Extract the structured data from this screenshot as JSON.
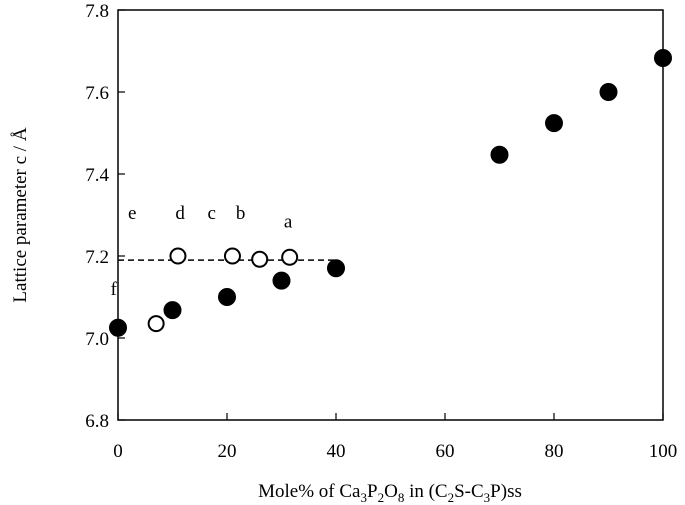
{
  "chart_data": {
    "type": "scatter",
    "xlabel_parts": [
      "Mole% of Ca",
      "3",
      "P",
      "2",
      "O",
      "8",
      " in (C",
      "2",
      "S-C",
      "3",
      "P)ss"
    ],
    "ylabel": "Lattice parameter c / Å",
    "xlim": [
      0,
      100
    ],
    "ylim": [
      6.8,
      7.8
    ],
    "x_ticks": [
      0,
      20,
      40,
      60,
      80,
      100
    ],
    "x_tick_labels": [
      "0",
      "20",
      "40",
      "60",
      "80",
      "100"
    ],
    "y_ticks": [
      6.8,
      7.0,
      7.2,
      7.4,
      7.6,
      7.8
    ],
    "y_tick_labels": [
      "6.8",
      "7.0",
      "7.2",
      "7.4",
      "7.6",
      "7.8"
    ],
    "grid": false,
    "series": [
      {
        "marker": "filled-circle",
        "points": [
          {
            "x": 0,
            "y": 7.025
          },
          {
            "x": 10,
            "y": 7.068
          },
          {
            "x": 20,
            "y": 7.1
          },
          {
            "x": 30,
            "y": 7.14
          },
          {
            "x": 40,
            "y": 7.17
          },
          {
            "x": 70,
            "y": 7.447
          },
          {
            "x": 80,
            "y": 7.524
          },
          {
            "x": 90,
            "y": 7.6
          },
          {
            "x": 100,
            "y": 7.683
          }
        ]
      },
      {
        "marker": "open-circle",
        "points": [
          {
            "x": 7,
            "y": 7.035
          },
          {
            "x": 11,
            "y": 7.2
          },
          {
            "x": 21,
            "y": 7.2
          },
          {
            "x": 26,
            "y": 7.192
          },
          {
            "x": 31.5,
            "y": 7.197
          }
        ]
      }
    ],
    "reference_line": {
      "style": "dashed",
      "x_start": 0,
      "x_end": 40,
      "y": 7.19
    },
    "annotations": [
      {
        "text": "a",
        "x": 31.2,
        "y": 7.27
      },
      {
        "text": "b",
        "x": 22.5,
        "y": 7.29
      },
      {
        "text": "c",
        "x": 17.2,
        "y": 7.29
      },
      {
        "text": "d",
        "x": 11.4,
        "y": 7.29
      },
      {
        "text": "e",
        "x": 2.6,
        "y": 7.29
      },
      {
        "text": "f",
        "x": -0.8,
        "y": 7.105
      }
    ]
  }
}
